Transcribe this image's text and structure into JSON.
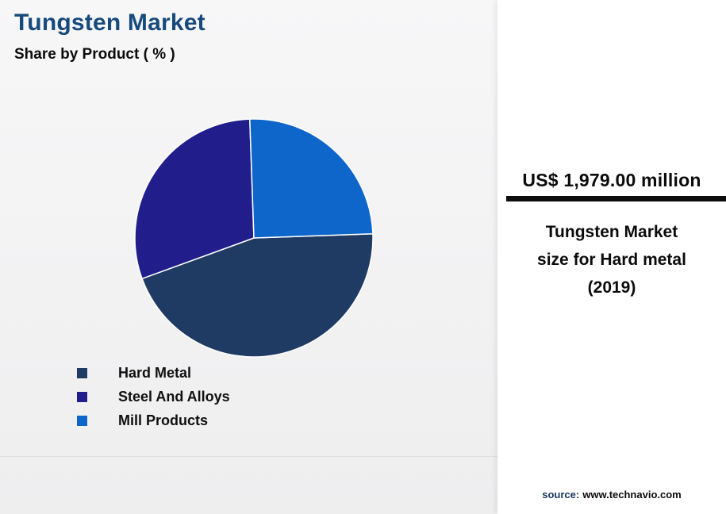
{
  "page": {
    "title": "Tungsten Market",
    "subtitle": "Share by Product ( % )"
  },
  "panel": {
    "value": "US$ 1,979.00 million",
    "caption_lines": [
      "Tungsten Market",
      "size for Hard metal",
      "(2019)"
    ],
    "source_label": "source:",
    "source_value": "www.technavio.com"
  },
  "chart_data": {
    "type": "pie",
    "title": "Tungsten Market Share by Product ( % )",
    "unit": "%",
    "segments": [
      {
        "label": "Hard Metal",
        "value": 45,
        "color": "#1F3B63"
      },
      {
        "label": "Steel And Alloys",
        "value": 30,
        "color": "#211E8C"
      },
      {
        "label": "Mill Products",
        "value": 25,
        "color": "#0E66CA"
      }
    ],
    "start_angle_deg": 88,
    "legend_position": "bottom-left",
    "data_labels_shown": false
  },
  "colors": {
    "title_navy": "#174A7C",
    "rule_black": "#0D0D0D",
    "panel_bg": "#FFFFFF",
    "page_bg": "#F2F2F3"
  }
}
